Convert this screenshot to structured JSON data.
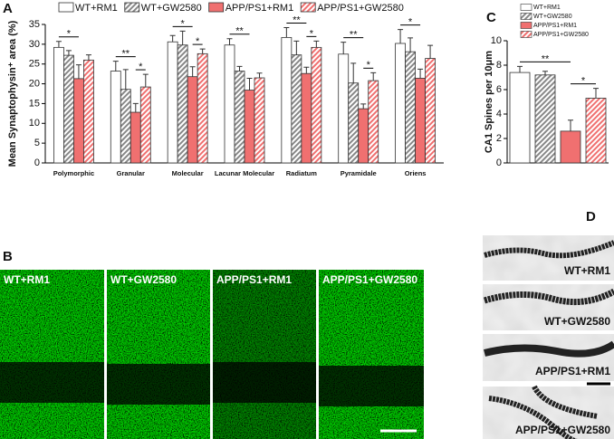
{
  "panel_labels": [
    "A",
    "B",
    "C",
    "D"
  ],
  "chart_data": [
    {
      "type": "bar",
      "legend": "top",
      "y_label": "Mean Synaptophysin⁺ area (%)",
      "categories": [
        "Polymorphic",
        "Granular",
        "Molecular",
        "Lacunar Molecular",
        "Radiatum",
        "Pyramidale",
        "Oriens"
      ],
      "series": [
        {
          "name": "WT+RM1",
          "color": "#ffffff",
          "hatch": false,
          "values": [
            29.2,
            23.2,
            30.6,
            29.8,
            31.7,
            27.5,
            30.2
          ],
          "errors": [
            1.5,
            2.5,
            1.6,
            1.6,
            2.5,
            3.0,
            3.5
          ]
        },
        {
          "name": "WT+GW2580",
          "color": "#888888",
          "hatch": true,
          "values": [
            27.2,
            18.6,
            29.8,
            23.2,
            27.3,
            20.2,
            28.1
          ],
          "errors": [
            1.2,
            5.0,
            3.5,
            1.2,
            3.5,
            5.0,
            3.5
          ]
        },
        {
          "name": "APP/PS1+RM1",
          "color": "#f07070",
          "hatch": false,
          "values": [
            21.3,
            12.8,
            21.8,
            18.4,
            22.6,
            13.7,
            21.4
          ],
          "errors": [
            3.5,
            2.2,
            2.5,
            3.0,
            1.6,
            1.2,
            2.3
          ]
        },
        {
          "name": "APP/PS1+GW2580",
          "color": "#f07070",
          "hatch": true,
          "values": [
            26.0,
            19.2,
            27.6,
            21.5,
            29.2,
            20.8,
            26.4
          ],
          "errors": [
            1.3,
            3.2,
            1.2,
            1.2,
            1.6,
            2.0,
            3.3
          ]
        }
      ],
      "ylim": [
        0,
        35
      ],
      "yticks": [
        0,
        5,
        10,
        15,
        20,
        25,
        30,
        35
      ],
      "annotations": [
        {
          "text": "*",
          "category": "Polymorphic",
          "between": [
            "WT+RM1",
            "APP/PS1+RM1"
          ]
        },
        {
          "text": "**",
          "category": "Granular",
          "between": [
            "WT+RM1",
            "APP/PS1+RM1"
          ]
        },
        {
          "text": "*",
          "category": "Granular",
          "between": [
            "APP/PS1+RM1",
            "APP/PS1+GW2580"
          ]
        },
        {
          "text": "*",
          "category": "Molecular",
          "between": [
            "WT+RM1",
            "APP/PS1+RM1"
          ]
        },
        {
          "text": "*",
          "category": "Molecular",
          "between": [
            "APP/PS1+RM1",
            "APP/PS1+GW2580"
          ]
        },
        {
          "text": "**",
          "category": "Lacunar Molecular",
          "between": [
            "WT+RM1",
            "APP/PS1+RM1"
          ]
        },
        {
          "text": "**",
          "category": "Radiatum",
          "between": [
            "WT+RM1",
            "APP/PS1+RM1"
          ]
        },
        {
          "text": "*",
          "category": "Radiatum",
          "between": [
            "APP/PS1+RM1",
            "APP/PS1+GW2580"
          ]
        },
        {
          "text": "**",
          "category": "Pyramidale",
          "between": [
            "WT+RM1",
            "APP/PS1+RM1"
          ]
        },
        {
          "text": "*",
          "category": "Pyramidale",
          "between": [
            "APP/PS1+RM1",
            "APP/PS1+GW2580"
          ]
        },
        {
          "text": "*",
          "category": "Oriens",
          "between": [
            "WT+RM1",
            "APP/PS1+RM1"
          ]
        }
      ]
    },
    {
      "type": "bar",
      "legend": "top-right",
      "y_label": "CA1 Spines per 10μm",
      "series": [
        {
          "name": "WT+RM1",
          "color": "#ffffff",
          "hatch": false,
          "values": [
            7.4
          ],
          "errors": [
            0.5
          ]
        },
        {
          "name": "WT+GW2580",
          "color": "#888888",
          "hatch": true,
          "values": [
            7.2
          ],
          "errors": [
            0.3
          ]
        },
        {
          "name": "APP/PS1+RM1",
          "color": "#f07070",
          "hatch": false,
          "values": [
            2.6
          ],
          "errors": [
            0.9
          ]
        },
        {
          "name": "APP/PS1+GW2580",
          "color": "#f07070",
          "hatch": true,
          "values": [
            5.3
          ],
          "errors": [
            0.8
          ]
        }
      ],
      "ylim": [
        0,
        10
      ],
      "yticks": [
        0,
        2,
        4,
        6,
        8,
        10
      ],
      "annotations": [
        {
          "text": "**",
          "between": [
            "WT+RM1",
            "APP/PS1+RM1"
          ]
        },
        {
          "text": "*",
          "between": [
            "APP/PS1+RM1",
            "APP/PS1+GW2580"
          ]
        }
      ]
    }
  ],
  "micrographs": {
    "labels": [
      "WT+RM1",
      "WT+GW2580",
      "APP/PS1+RM1",
      "APP/PS1+GW2580"
    ]
  },
  "dendrites": {
    "labels": [
      "WT+RM1",
      "WT+GW2580",
      "APP/PS1+RM1",
      "APP/PS1+GW2580"
    ]
  }
}
